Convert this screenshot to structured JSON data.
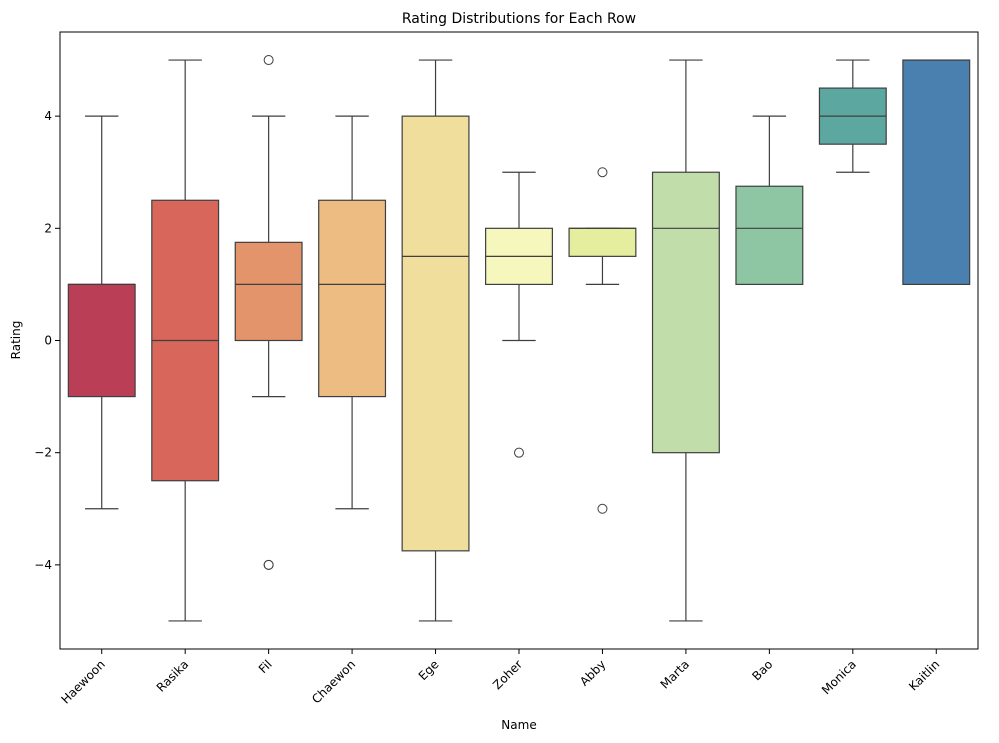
{
  "chart_data": {
    "type": "box",
    "title": "Rating Distributions for Each Row",
    "xlabel": "Name",
    "ylabel": "Rating",
    "ylim": [
      -5.5,
      5.5
    ],
    "yticks": [
      -4,
      -2,
      0,
      2,
      4
    ],
    "ytick_labels": [
      "−4",
      "−2",
      "0",
      "2",
      "4"
    ],
    "grid": false,
    "categories": [
      "Haewoon",
      "Rasika",
      "Fil",
      "Chaewon",
      "Ege",
      "Zoher",
      "Abby",
      "Marta",
      "Bao",
      "Monica",
      "Kaitlin"
    ],
    "boxes": [
      {
        "name": "Haewoon",
        "whisker_low": -3,
        "q1": -1,
        "median": 1,
        "q3": 1,
        "whisker_high": 4,
        "outliers": [],
        "color": "#b93e56"
      },
      {
        "name": "Rasika",
        "whisker_low": -5,
        "q1": -2.5,
        "median": 0,
        "q3": 2.5,
        "whisker_high": 5,
        "outliers": [],
        "color": "#d8665a"
      },
      {
        "name": "Fil",
        "whisker_low": -1,
        "q1": 0,
        "median": 1,
        "q3": 1.75,
        "whisker_high": 4,
        "outliers": [
          5,
          -4,
          -4
        ],
        "color": "#e3946a"
      },
      {
        "name": "Chaewon",
        "whisker_low": -3,
        "q1": -1,
        "median": 1,
        "q3": 2.5,
        "whisker_high": 4,
        "outliers": [],
        "color": "#ecbc82"
      },
      {
        "name": "Ege",
        "whisker_low": -5,
        "q1": -3.75,
        "median": 1.5,
        "q3": 4,
        "whisker_high": 5,
        "outliers": [],
        "color": "#f0de9d"
      },
      {
        "name": "Zoher",
        "whisker_low": 0,
        "q1": 1,
        "median": 1.5,
        "q3": 2,
        "whisker_high": 3,
        "outliers": [
          -2
        ],
        "color": "#f6f7bd"
      },
      {
        "name": "Abby",
        "whisker_low": 1,
        "q1": 1.5,
        "median": 2,
        "q3": 2,
        "whisker_high": 2,
        "outliers": [
          3,
          -3
        ],
        "color": "#e5ee9f"
      },
      {
        "name": "Marta",
        "whisker_low": -5,
        "q1": -2,
        "median": 2,
        "q3": 3,
        "whisker_high": 5,
        "outliers": [],
        "color": "#c0ddaa"
      },
      {
        "name": "Bao",
        "whisker_low": 1,
        "q1": 1,
        "median": 2,
        "q3": 2.75,
        "whisker_high": 4,
        "outliers": [],
        "color": "#8ec6a3"
      },
      {
        "name": "Monica",
        "whisker_low": 3,
        "q1": 3.5,
        "median": 4,
        "q3": 4.5,
        "whisker_high": 5,
        "outliers": [],
        "color": "#5ca7a0"
      },
      {
        "name": "Kaitlin",
        "whisker_low": 1,
        "q1": 1,
        "median": 5,
        "q3": 5,
        "whisker_high": 5,
        "outliers": [],
        "color": "#4a80b0"
      }
    ],
    "line_color": "#3f3f3f",
    "axis_color": "#000000"
  }
}
